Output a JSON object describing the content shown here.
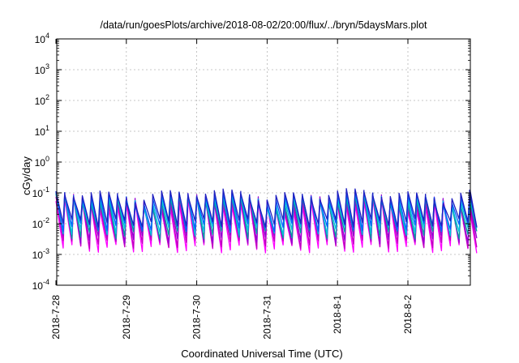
{
  "chart_data": {
    "type": "line",
    "title": "/data/run/goesPlots/archive/2018-08-02/20:00/flux/../bryn/5daysMars.plot",
    "xlabel": "Coordinated Universal Time (UTC)",
    "ylabel": "cGy/day",
    "y_scale": "log",
    "ylim": [
      0.0001,
      10000
    ],
    "y_ticks": [
      {
        "base": "10",
        "exp": "4"
      },
      {
        "base": "10",
        "exp": "3"
      },
      {
        "base": "10",
        "exp": "2"
      },
      {
        "base": "10",
        "exp": "1"
      },
      {
        "base": "10",
        "exp": "0"
      },
      {
        "base": "10",
        "exp": "-1"
      },
      {
        "base": "10",
        "exp": "-2"
      },
      {
        "base": "10",
        "exp": "-3"
      },
      {
        "base": "10",
        "exp": "-4"
      }
    ],
    "x_ticks": [
      "2018-7-28",
      "2018-7-29",
      "2018-7-30",
      "2018-7-31",
      "2018-8-1",
      "2018-8-2"
    ],
    "xlim": [
      "2018-7-28",
      "2018-8-2 20:00"
    ],
    "grid": true,
    "legend": "none",
    "pattern": {
      "note_period_hours": 3,
      "peak_values": [
        0.09,
        0.07,
        0.06,
        0.05,
        0.04
      ],
      "trough_values": [
        0.0015,
        0.0022,
        0.0035,
        0.005,
        0.007
      ]
    },
    "series": [
      {
        "color": "#ff00ff",
        "peak": 0.045,
        "trough": 0.0016
      },
      {
        "color": "#c000c0",
        "peak": 0.055,
        "trough": 0.0022
      },
      {
        "color": "#9400d3",
        "peak": 0.065,
        "trough": 0.0032
      },
      {
        "color": "#00a0a0",
        "peak": 0.06,
        "trough": 0.0045
      },
      {
        "color": "#00c0e0",
        "peak": 0.07,
        "trough": 0.006
      },
      {
        "color": "#0060ff",
        "peak": 0.08,
        "trough": 0.008
      },
      {
        "color": "#2020c0",
        "peak": 0.09,
        "trough": 0.011
      }
    ]
  }
}
